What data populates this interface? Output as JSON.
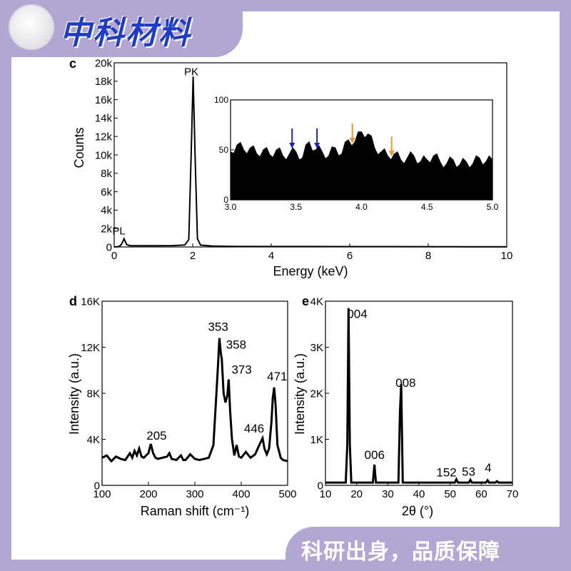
{
  "banner": {
    "brand": "中科材料",
    "slogan": "科研出身，品质保障"
  },
  "chart_data": [
    {
      "type": "line",
      "panel": "c",
      "title": "",
      "xlabel": "Energy (keV)",
      "ylabel": "Counts",
      "xlim": [
        0,
        10
      ],
      "ylim": [
        0,
        20000
      ],
      "xticks": [
        "0",
        "2",
        "4",
        "6",
        "8",
        "10"
      ],
      "yticks": [
        "0",
        "2k",
        "4k",
        "6k",
        "8k",
        "10k",
        "12k",
        "14k",
        "16k",
        "18k",
        "20k"
      ],
      "x": [
        0.0,
        0.1,
        0.15,
        0.2,
        0.25,
        0.28,
        0.32,
        0.4,
        0.6,
        1.0,
        1.5,
        1.8,
        1.9,
        1.96,
        2.01,
        2.06,
        2.12,
        2.2,
        2.5,
        3.0,
        4.0,
        5.0,
        6.0,
        7.0,
        8.0,
        9.0,
        10.0
      ],
      "y": [
        0,
        40,
        120,
        400,
        900,
        600,
        250,
        150,
        140,
        130,
        150,
        220,
        800,
        10000,
        18500,
        10000,
        900,
        200,
        100,
        60,
        50,
        45,
        40,
        35,
        30,
        25,
        20
      ],
      "annotations": [
        {
          "text": "PK",
          "x": 2.0,
          "y": 18500
        },
        {
          "text": "PL",
          "x": 0.28,
          "y": 900
        }
      ],
      "inset": {
        "type": "area",
        "xlim": [
          3.0,
          5.0
        ],
        "ylim": [
          0,
          100
        ],
        "xticks": [
          "3.0",
          "3.5",
          "4.0",
          "4.5",
          "5.0"
        ],
        "yticks": [
          "0",
          "50",
          "100"
        ],
        "x": [
          3.0,
          3.05,
          3.1,
          3.15,
          3.2,
          3.25,
          3.3,
          3.35,
          3.4,
          3.45,
          3.5,
          3.55,
          3.6,
          3.65,
          3.7,
          3.75,
          3.8,
          3.85,
          3.9,
          3.95,
          4.0,
          4.05,
          4.1,
          4.15,
          4.2,
          4.25,
          4.3,
          4.35,
          4.4,
          4.45,
          4.5,
          4.55,
          4.6,
          4.65,
          4.7,
          4.75,
          4.8,
          4.85,
          4.9,
          4.95,
          5.0
        ],
        "y": [
          48,
          55,
          50,
          52,
          46,
          50,
          45,
          50,
          44,
          46,
          48,
          42,
          58,
          50,
          48,
          44,
          52,
          46,
          60,
          58,
          68,
          66,
          52,
          48,
          44,
          46,
          40,
          42,
          44,
          38,
          40,
          44,
          38,
          36,
          40,
          35,
          38,
          36,
          42,
          38,
          40
        ],
        "markers": [
          {
            "x": 3.47,
            "y": 50,
            "color": "#1f1fbf"
          },
          {
            "x": 3.66,
            "y": 50,
            "color": "#1f1fbf"
          },
          {
            "x": 3.93,
            "y": 55,
            "color": "#e8962e"
          },
          {
            "x": 4.23,
            "y": 42,
            "color": "#e8962e"
          }
        ]
      }
    },
    {
      "type": "line",
      "panel": "d",
      "title": "",
      "xlabel": "Raman shift (cm⁻¹)",
      "ylabel": "Intensity (a.u.)",
      "xlim": [
        100,
        500
      ],
      "ylim": [
        0,
        16000
      ],
      "xticks": [
        "100",
        "200",
        "300",
        "400",
        "500"
      ],
      "yticks": [
        "0",
        "4K",
        "8K",
        "12K",
        "16K"
      ],
      "x": [
        100,
        110,
        120,
        130,
        140,
        150,
        160,
        165,
        170,
        175,
        180,
        185,
        190,
        200,
        205,
        210,
        215,
        220,
        230,
        240,
        245,
        250,
        260,
        270,
        275,
        280,
        290,
        300,
        310,
        320,
        330,
        340,
        345,
        350,
        353,
        356,
        358,
        362,
        366,
        370,
        373,
        376,
        380,
        385,
        390,
        395,
        400,
        410,
        420,
        430,
        440,
        446,
        450,
        455,
        460,
        465,
        468,
        471,
        474,
        478,
        485,
        490,
        500
      ],
      "y": [
        2400,
        2600,
        2100,
        2500,
        2300,
        2200,
        2800,
        2400,
        3000,
        2600,
        3200,
        2500,
        2400,
        2800,
        3600,
        2800,
        2400,
        2300,
        2400,
        2500,
        2800,
        2300,
        2200,
        2600,
        2200,
        2200,
        2700,
        2300,
        2200,
        2300,
        2400,
        3500,
        7000,
        10500,
        12800,
        11500,
        11000,
        8000,
        7200,
        7800,
        9200,
        6500,
        4000,
        2600,
        3500,
        2500,
        2400,
        2900,
        2400,
        2700,
        3600,
        4100,
        3200,
        2700,
        3200,
        5500,
        7600,
        8500,
        7000,
        3500,
        2400,
        2200,
        2100
      ],
      "annotations": [
        {
          "text": "205",
          "x": 205,
          "y": 3600
        },
        {
          "text": "353",
          "x": 353,
          "y": 12800
        },
        {
          "text": "358",
          "x": 358,
          "y": 11000
        },
        {
          "text": "373",
          "x": 373,
          "y": 9200
        },
        {
          "text": "446",
          "x": 446,
          "y": 4100
        },
        {
          "text": "471",
          "x": 471,
          "y": 8500
        }
      ]
    },
    {
      "type": "line",
      "panel": "e",
      "title": "",
      "xlabel": "2θ (°)",
      "ylabel": "Intensity (a.u.)",
      "xlim": [
        10,
        70
      ],
      "ylim": [
        0,
        4000
      ],
      "xticks": [
        "10",
        "20",
        "30",
        "40",
        "50",
        "60",
        "70"
      ],
      "yticks": [
        "0",
        "1K",
        "2K",
        "3K",
        "4K"
      ],
      "x": [
        10,
        16.5,
        17.0,
        17.4,
        17.8,
        18.3,
        25.2,
        25.7,
        26.2,
        33.4,
        33.9,
        34.3,
        34.8,
        51.5,
        52.0,
        52.5,
        56.0,
        56.5,
        57.0,
        61.5,
        62.0,
        62.5,
        64.5,
        65.0,
        65.5,
        70
      ],
      "y": [
        60,
        60,
        900,
        3850,
        900,
        60,
        60,
        450,
        60,
        60,
        1600,
        2200,
        60,
        60,
        130,
        60,
        60,
        120,
        60,
        60,
        110,
        60,
        60,
        90,
        60,
        60
      ],
      "annotations": [
        {
          "text": "004",
          "x": 17.4,
          "y": 3850
        },
        {
          "text": "006",
          "x": 25.7,
          "y": 450
        },
        {
          "text": "008",
          "x": 34.3,
          "y": 2200
        },
        {
          "text": "152",
          "x": 52,
          "y": 130
        },
        {
          "text": "53",
          "x": 56.5,
          "y": 120
        },
        {
          "text": "4",
          "x": 62,
          "y": 110
        }
      ]
    }
  ],
  "panel_labels": [
    "c",
    "d",
    "e"
  ]
}
